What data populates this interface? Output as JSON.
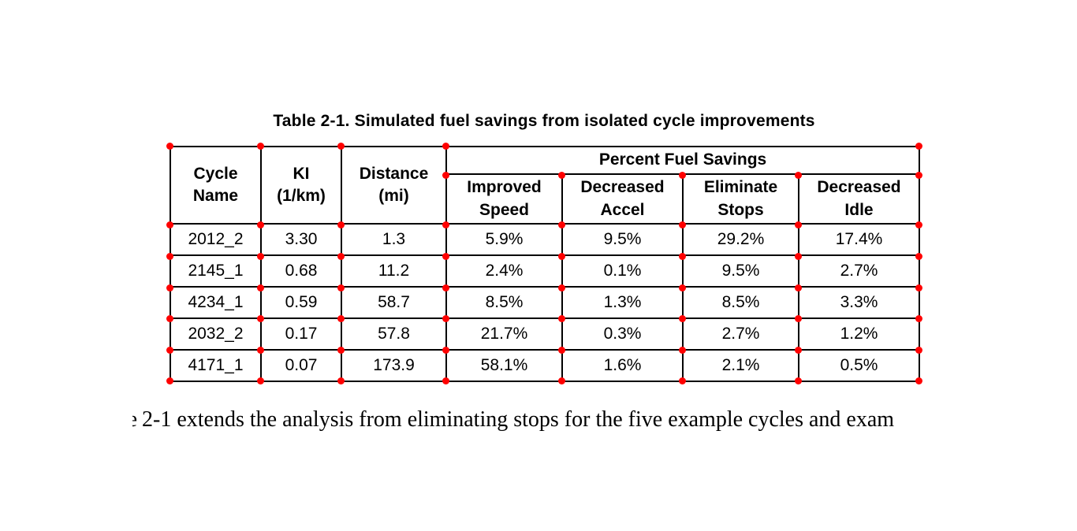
{
  "title": "Table 2-1. Simulated fuel savings from isolated cycle improvements",
  "table": {
    "row_headers": [
      "Cycle\nName",
      "KI\n(1/km)",
      "Distance\n(mi)"
    ],
    "span_header": "Percent Fuel Savings",
    "sub_headers": [
      "Improved\nSpeed",
      "Decreased\nAccel",
      "Eliminate\nStops",
      "Decreased\nIdle"
    ],
    "rows": [
      [
        "2012_2",
        "3.30",
        "1.3",
        "5.9%",
        "9.5%",
        "29.2%",
        "17.4%"
      ],
      [
        "2145_1",
        "0.68",
        "11.2",
        "2.4%",
        "0.1%",
        "9.5%",
        "2.7%"
      ],
      [
        "4234_1",
        "0.59",
        "58.7",
        "8.5%",
        "1.3%",
        "8.5%",
        "3.3%"
      ],
      [
        "2032_2",
        "0.17",
        "57.8",
        "21.7%",
        "0.3%",
        "2.7%",
        "1.2%"
      ],
      [
        "4171_1",
        "0.07",
        "173.9",
        "58.1%",
        "1.6%",
        "2.1%",
        "0.5%"
      ]
    ]
  },
  "annotations": {
    "marker_color": "#ff0000"
  },
  "caption": {
    "fragment": "e",
    "text": "2-1 extends the analysis from eliminating stops for the five example cycles and exam"
  }
}
